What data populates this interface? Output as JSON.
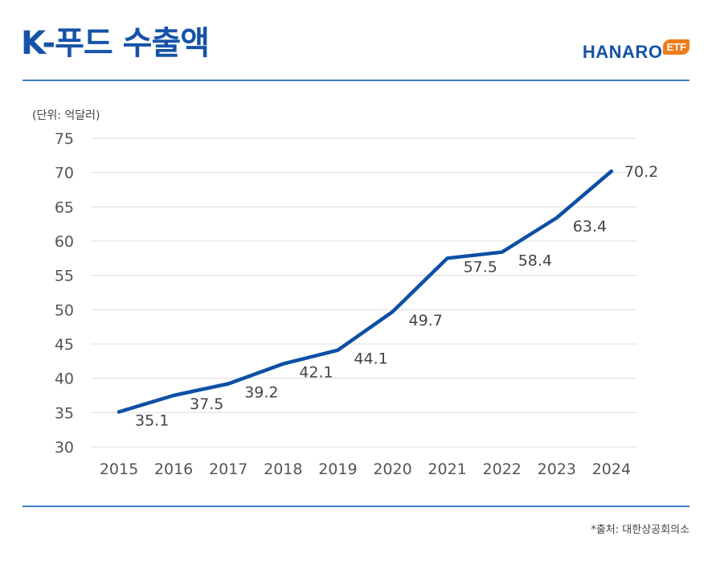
{
  "header": {
    "title": "K-푸드 수출액",
    "logo_text": "HANARO",
    "logo_badge": "ETF"
  },
  "footer": {
    "source": "*출처: 대한상공회의소"
  },
  "colors": {
    "accent": "#1653a8",
    "line": "#0d4fa6",
    "badge": "#ee7d1a",
    "rule": "#3a7fc7",
    "grid": "#dcdcdc"
  },
  "chart_data": {
    "type": "line",
    "title": "",
    "unit_label": "(단위: 억달러)",
    "xlabel": "",
    "ylabel": "",
    "categories": [
      "2015",
      "2016",
      "2017",
      "2018",
      "2019",
      "2020",
      "2021",
      "2022",
      "2023",
      "2024"
    ],
    "series": [
      {
        "values": [
          35.1,
          37.5,
          39.2,
          42.1,
          44.1,
          49.7,
          57.5,
          58.4,
          63.4,
          70.2
        ]
      }
    ],
    "data_labels": [
      "35.1",
      "37.5",
      "39.2",
      "42.1",
      "44.1",
      "49.7",
      "57.5",
      "58.4",
      "63.4",
      "70.2"
    ],
    "ylim": [
      30,
      75
    ],
    "yticks": [
      "30",
      "35",
      "40",
      "45",
      "50",
      "55",
      "60",
      "65",
      "70",
      "75"
    ],
    "grid": "horizontal",
    "legend": "none"
  }
}
